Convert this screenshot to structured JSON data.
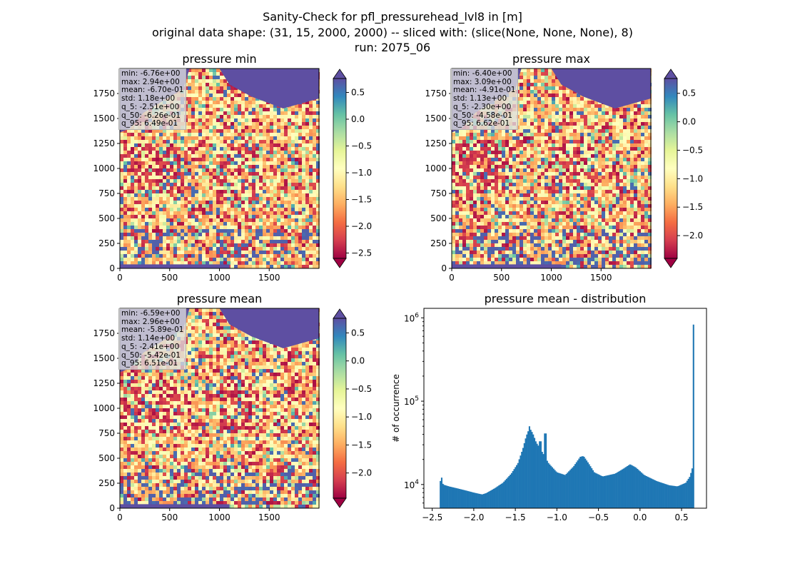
{
  "suptitle": [
    "Sanity-Check for pfl_pressurehead_lvl8 in [m]",
    "original data shape: (31, 15, 2000, 2000) -- sliced with: (slice(None, None, None), 8)",
    "run: 2075_06"
  ],
  "chart_data": [
    {
      "type": "heatmap",
      "title": "pressure min",
      "colormap": "Spectral",
      "x_ticks": [
        "0",
        "500",
        "1000",
        "1500"
      ],
      "y_ticks": [
        "0",
        "250",
        "500",
        "750",
        "1000",
        "1250",
        "1500",
        "1750"
      ],
      "xlim": [
        0,
        2000
      ],
      "ylim": [
        0,
        2000
      ],
      "colorbar": {
        "range": [
          -2.6,
          0.76
        ],
        "extend": "both",
        "ticks": [
          "0.5",
          "0.0",
          "−0.5",
          "−1.0",
          "−1.5",
          "−2.0",
          "−2.5"
        ],
        "tick_values": [
          0.5,
          0.0,
          -0.5,
          -1.0,
          -1.5,
          -2.0,
          -2.5
        ]
      },
      "stats": [
        "min: -6.76e+00",
        "max: 2.94e+00",
        "mean: -6.70e-01",
        "std: 1.18e+00",
        "q_5: -2.51e+00",
        "q_50: -6.26e-01",
        "q_95: 6.49e-01"
      ]
    },
    {
      "type": "heatmap",
      "title": "pressure max",
      "colormap": "Spectral",
      "x_ticks": [
        "0",
        "500",
        "1000",
        "1500"
      ],
      "y_ticks": [
        "0",
        "250",
        "500",
        "750",
        "1000",
        "1250",
        "1500",
        "1750"
      ],
      "xlim": [
        0,
        2000
      ],
      "ylim": [
        0,
        2000
      ],
      "colorbar": {
        "range": [
          -2.4,
          0.76
        ],
        "extend": "both",
        "ticks": [
          "0.5",
          "0.0",
          "−0.5",
          "−1.0",
          "−1.5",
          "−2.0"
        ],
        "tick_values": [
          0.5,
          0.0,
          -0.5,
          -1.0,
          -1.5,
          -2.0
        ]
      },
      "stats": [
        "min: -6.40e+00",
        "max: 3.09e+00",
        "mean: -4.91e-01",
        "std: 1.13e+00",
        "q_5: -2.30e+00",
        "q_50: -4.58e-01",
        "q_95: 6.62e-01"
      ]
    },
    {
      "type": "heatmap",
      "title": "pressure mean",
      "colormap": "Spectral",
      "x_ticks": [
        "0",
        "500",
        "1000",
        "1500"
      ],
      "y_ticks": [
        "0",
        "250",
        "500",
        "750",
        "1000",
        "1250",
        "1500",
        "1750"
      ],
      "xlim": [
        0,
        2000
      ],
      "ylim": [
        0,
        2000
      ],
      "colorbar": {
        "range": [
          -2.45,
          0.76
        ],
        "extend": "both",
        "ticks": [
          "0.5",
          "0.0",
          "−0.5",
          "−1.0",
          "−1.5",
          "−2.0"
        ],
        "tick_values": [
          0.5,
          0.0,
          -0.5,
          -1.0,
          -1.5,
          -2.0
        ]
      },
      "stats": [
        "min: -6.59e+00",
        "max: 2.96e+00",
        "mean: -5.89e-01",
        "std: 1.14e+00",
        "q_5: -2.41e+00",
        "q_50: -5.42e-01",
        "q_95: 6.51e-01"
      ]
    },
    {
      "type": "bar",
      "title": "pressure mean - distribution",
      "ylabel": "# of occurrence",
      "yscale": "log",
      "color": "#1f77b4",
      "xlim": [
        -2.6,
        0.8
      ],
      "ylim": [
        5200,
        1300000
      ],
      "x_ticks": [
        -2.5,
        -2.0,
        -1.5,
        -1.0,
        -0.5,
        0.0,
        0.5
      ],
      "x_tick_labels": [
        "−2.5",
        "−2.0",
        "−1.5",
        "−1.0",
        "−0.5",
        "0.0",
        "0.5"
      ],
      "y_ticks": [
        10000,
        100000,
        1000000
      ],
      "y_tick_labels": [
        "10^4",
        "10^5",
        "10^6"
      ],
      "bin_range": [
        -2.41,
        0.65
      ],
      "anchors": [
        [
          -2.41,
          10200
        ],
        [
          -2.39,
          12500
        ],
        [
          -2.37,
          10000
        ],
        [
          -2.3,
          9500
        ],
        [
          -2.2,
          9000
        ],
        [
          -2.1,
          8500
        ],
        [
          -2.0,
          8000
        ],
        [
          -1.9,
          7600
        ],
        [
          -1.85,
          7900
        ],
        [
          -1.75,
          9000
        ],
        [
          -1.65,
          10500
        ],
        [
          -1.55,
          13500
        ],
        [
          -1.47,
          18000
        ],
        [
          -1.41,
          27000
        ],
        [
          -1.37,
          38000
        ],
        [
          -1.33,
          48000
        ],
        [
          -1.29,
          41000
        ],
        [
          -1.25,
          32000
        ],
        [
          -1.2,
          27000
        ],
        [
          -1.15,
          22000
        ],
        [
          -1.1,
          18000
        ],
        [
          -1.0,
          14000
        ],
        [
          -0.9,
          13000
        ],
        [
          -0.8,
          16500
        ],
        [
          -0.72,
          21500
        ],
        [
          -0.68,
          22000
        ],
        [
          -0.62,
          18000
        ],
        [
          -0.55,
          14000
        ],
        [
          -0.45,
          12500
        ],
        [
          -0.3,
          13500
        ],
        [
          -0.2,
          15500
        ],
        [
          -0.12,
          17500
        ],
        [
          -0.05,
          16000
        ],
        [
          0.05,
          13000
        ],
        [
          0.2,
          11000
        ],
        [
          0.35,
          9800
        ],
        [
          0.45,
          9500
        ],
        [
          0.55,
          10500
        ],
        [
          0.6,
          12500
        ],
        [
          0.63,
          16000
        ],
        [
          0.645,
          32000
        ],
        [
          0.65,
          830000
        ]
      ],
      "spikes": [
        [
          -1.33,
          50000
        ],
        [
          -1.14,
          41000
        ],
        [
          -1.2,
          33000
        ],
        [
          -0.97,
          12000
        ]
      ]
    }
  ]
}
